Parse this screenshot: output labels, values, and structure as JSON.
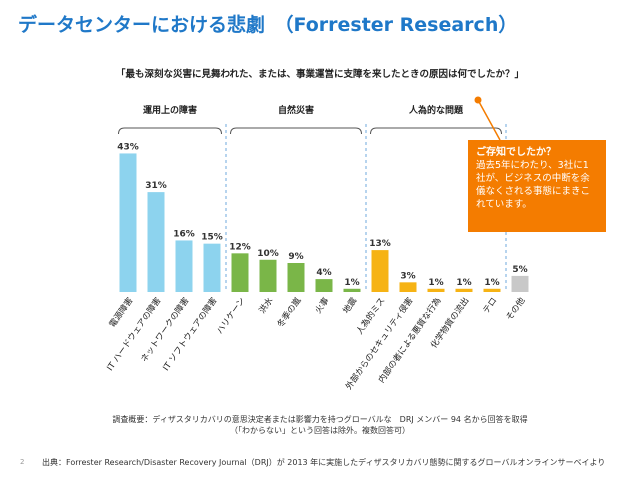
{
  "slide": {
    "title": "データセンターにおける悲劇　（Forrester Research）",
    "question": "「最も深刻な災害に見舞われた、または、事業運営に支障を来したときの原因は何でしたか？」",
    "survey_line1": "調査概要：ディザスタリカバリの意思決定者または影響力を持つグローバルな　DRJ メンバー 94 名から回答を取得",
    "survey_line2": "（「わからない」という回答は除外。複数回答可）",
    "page_number": "2",
    "source": "出典：Forrester Research/Disaster Recovery Journal（DRJ）が 2013 年に実施したディザスタリカバリ態勢に関するグローバルオンラインサーベイより"
  },
  "callout": {
    "title": "ご存知でしたか？",
    "body": "過去5年にわたり、3社に1社が、ビジネスの中断を余儀なくされる事態にまきこれています。",
    "color": "#f47c00"
  },
  "chart_data": {
    "type": "bar",
    "ylim": [
      0,
      45
    ],
    "groups": [
      {
        "label": "運用上の障害",
        "start": 0,
        "end": 3
      },
      {
        "label": "自然災害",
        "start": 4,
        "end": 8
      },
      {
        "label": "人為的な問題",
        "start": 9,
        "end": 13
      }
    ],
    "categories": [
      "電源障害",
      "IT ハードウェアの障害",
      "ネットワークの障害",
      "IT ソフトウェアの障害",
      "ハリケーン",
      "洪水",
      "冬季の嵐",
      "火事",
      "地震",
      "人為的ミス",
      "外部からのセキュリティ侵害",
      "内部の者による悪質な行為",
      "化学物質の流出",
      "テロ",
      "その他"
    ],
    "values": [
      43,
      31,
      16,
      15,
      12,
      10,
      9,
      4,
      1,
      13,
      3,
      1,
      1,
      1,
      5
    ],
    "value_labels": [
      "43%",
      "31%",
      "16%",
      "15%",
      "12%",
      "10%",
      "9%",
      "4%",
      "1%",
      "13%",
      "3%",
      "1%",
      "1%",
      "1%",
      "5%"
    ],
    "bar_colors": [
      "#8dd3ee",
      "#8dd3ee",
      "#8dd3ee",
      "#8dd3ee",
      "#7ab648",
      "#7ab648",
      "#7ab648",
      "#7ab648",
      "#7ab648",
      "#f6b314",
      "#f6b314",
      "#f6b314",
      "#f6b314",
      "#f6b314",
      "#c8c8c8"
    ],
    "legend": "none",
    "grid": false
  }
}
